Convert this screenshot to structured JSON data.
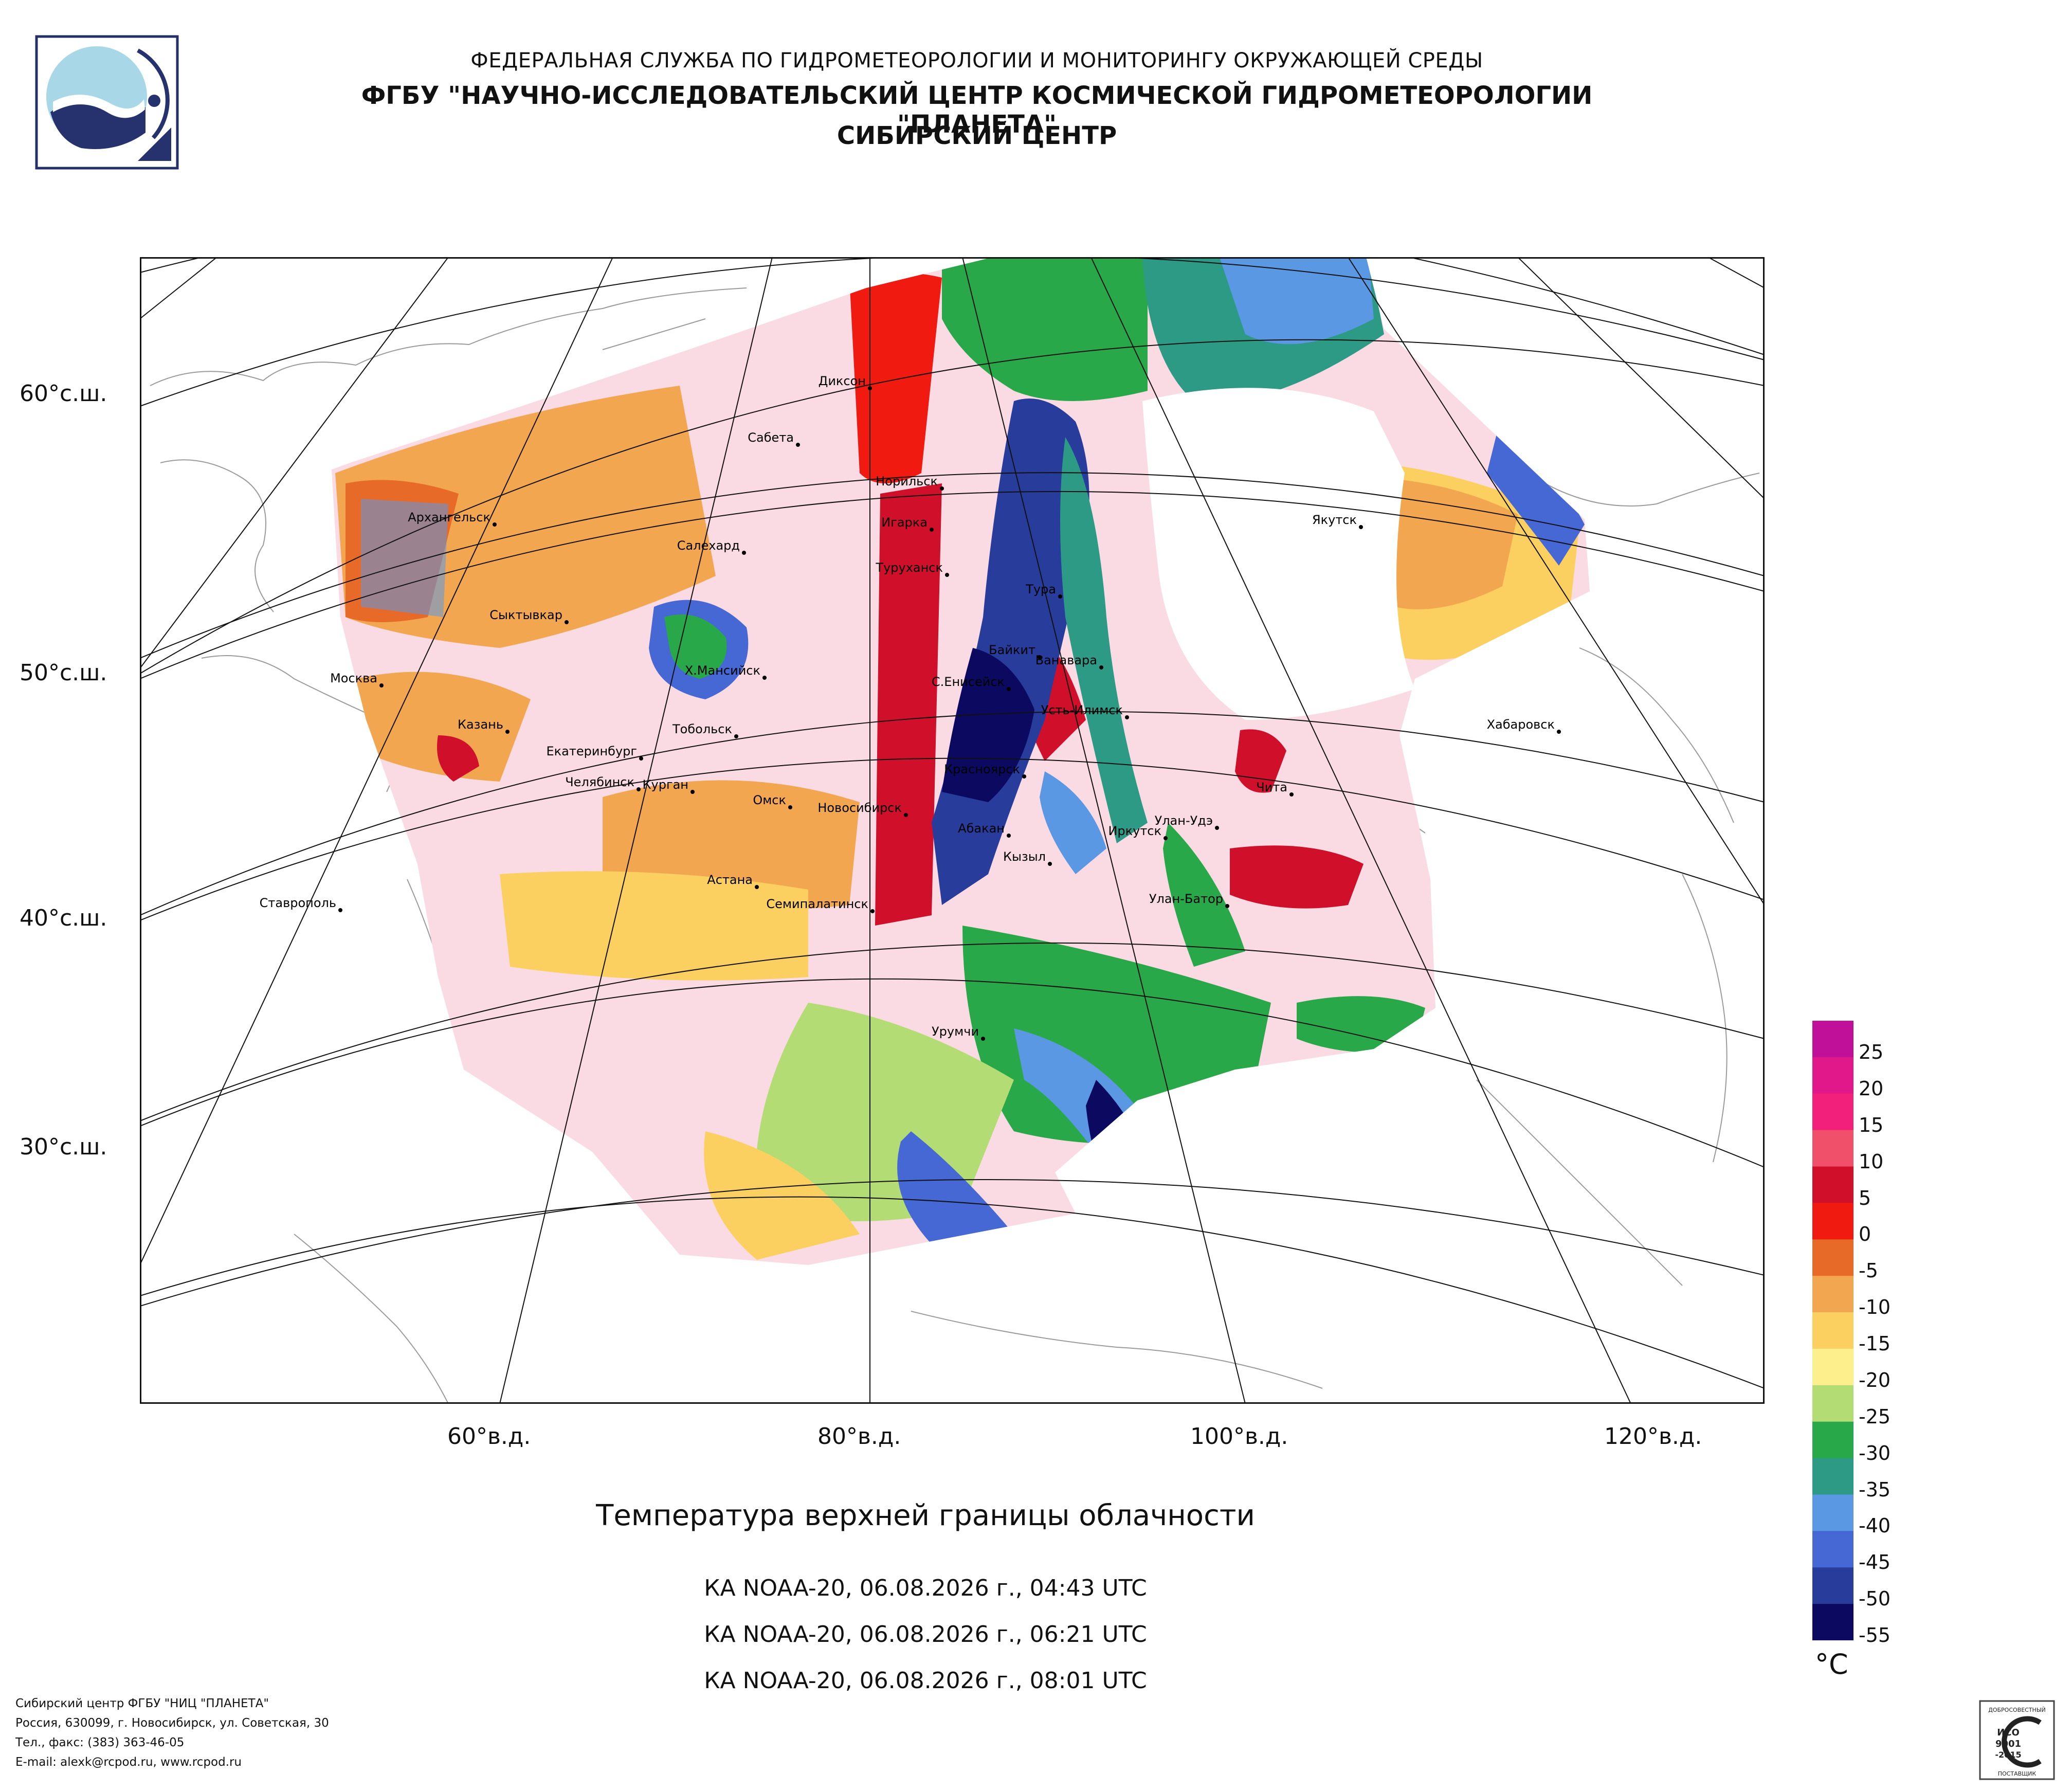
{
  "header": {
    "line1": "ФЕДЕРАЛЬНАЯ СЛУЖБА ПО ГИДРОМЕТЕОРОЛОГИИ И МОНИТОРИНГУ ОКРУЖАЮЩЕЙ СРЕДЫ",
    "line2": "ФГБУ \"НАУЧНО-ИССЛЕДОВАТЕЛЬСКИЙ ЦЕНТР КОСМИЧЕСКОЙ ГИДРОМЕТЕОРОЛОГИИ \"ПЛАНЕТА\"",
    "line3": "СИБИРСКИЙ ЦЕНТР"
  },
  "map": {
    "lat_labels": [
      "60°с.ш.",
      "50°с.ш.",
      "40°с.ш.",
      "30°с.ш."
    ],
    "lon_labels": [
      "60°в.д.",
      "80°в.д.",
      "100°в.д.",
      "120°в.д."
    ],
    "cities": [
      "Диксон",
      "Сабета",
      "Норильск",
      "Архангельск",
      "Игарка",
      "Салехард",
      "Туруханск",
      "Тура",
      "Якутск",
      "Сыктывкар",
      "Байкит",
      "Ванавара",
      "Москва",
      "Х.Мансийск",
      "С.Енисейск",
      "Усть-Илимск",
      "Тобольск",
      "Казань",
      "Екатеринбург",
      "Хабаровск",
      "Красноярск",
      "Челябинск",
      "Курган",
      "Чита",
      "Омск",
      "Новосибирск",
      "Улан-Удэ",
      "Абакан",
      "Иркутск",
      "Кызыл",
      "Астана",
      "Ставрополь",
      "Улан-Батор",
      "Семипалатинск",
      "Урумчи"
    ]
  },
  "title": "Температура верхней границы облачности",
  "passes": [
    "КА NOAA-20, 06.08.2026 г., 04:43 UTC",
    "КА NOAA-20, 06.08.2026 г., 06:21 UTC",
    "КА NOAA-20, 06.08.2026 г., 08:01 UTC"
  ],
  "legend": {
    "unit": "°C",
    "ticks": [
      "25",
      "20",
      "15",
      "10",
      "5",
      "0",
      "-5",
      "-10",
      "-15",
      "-20",
      "-25",
      "-30",
      "-35",
      "-40",
      "-45",
      "-50",
      "-55"
    ],
    "colors": [
      "#c0109a",
      "#e0188a",
      "#f2207a",
      "#f0506a",
      "#d0102a",
      "#f01a10",
      "#e86a28",
      "#f3a650",
      "#fbd060",
      "#fdf08c",
      "#b4dc74",
      "#28a848",
      "#2c9a84",
      "#5a98e4",
      "#4668d4",
      "#283c9c",
      "#0c0a60"
    ]
  },
  "footer": {
    "line1": "Сибирский центр ФГБУ \"НИЦ \"ПЛАНЕТА\"",
    "line2": "Россия, 630099, г. Новосибирск, ул. Советская, 30",
    "line3": "Тел., факс: (383) 363-46-05",
    "line4": "E-mail: alexk@rcpod.ru, www.rcpod.ru"
  },
  "cert": {
    "line1": "ДОБРОСОВЕСТНЫЙ",
    "line2": "ИСО",
    "line3": "9001",
    "line4": "-2015",
    "line5": "ПОСТАВЩИК"
  }
}
